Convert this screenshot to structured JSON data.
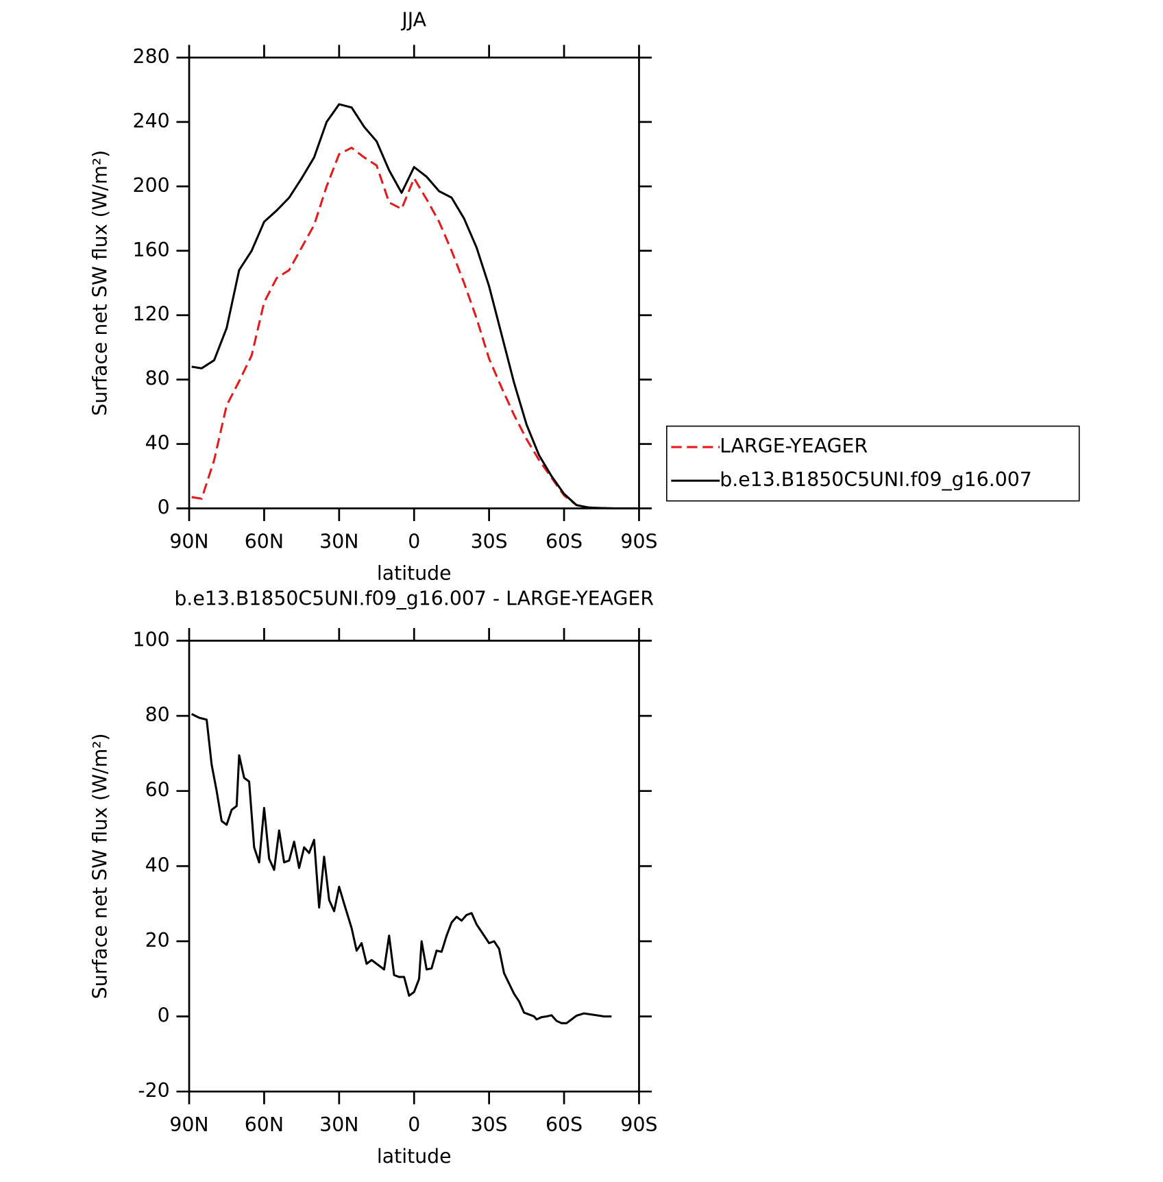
{
  "chart_data": [
    {
      "type": "line",
      "title": "JJA",
      "x_label": "latitude",
      "y_label": "Surface net SW flux (W/m²)",
      "x": [
        89,
        85,
        80,
        75,
        70,
        65,
        60,
        55,
        50,
        45,
        40,
        35,
        30,
        25,
        20,
        15,
        10,
        5,
        0,
        -5,
        -10,
        -15,
        -20,
        -25,
        -30,
        -35,
        -40,
        -45,
        -50,
        -55,
        -60,
        -65,
        -70,
        -75,
        -80,
        -85,
        -89
      ],
      "series": [
        {
          "name": "LARGE-YEAGER",
          "color": "#e41a1c",
          "dash": true,
          "values": [
            7,
            6,
            30,
            64,
            79,
            95,
            128,
            143,
            148,
            162,
            176,
            200,
            220,
            224,
            218,
            213,
            190,
            186,
            205,
            192,
            178,
            160,
            140,
            118,
            93,
            75,
            58,
            43,
            30,
            19,
            8,
            2,
            0.5,
            0.2,
            0,
            0,
            0
          ]
        },
        {
          "name": "b.e13.B1850C5UNI.f09_g16.007",
          "color": "#000000",
          "dash": false,
          "values": [
            88,
            87,
            92,
            112,
            148,
            160,
            178,
            185,
            193,
            205,
            218,
            240,
            251,
            249,
            237,
            228,
            210,
            196,
            212,
            206,
            197,
            193,
            180,
            162,
            138,
            108,
            78,
            52,
            33,
            20,
            9,
            2,
            0.5,
            0.2,
            0,
            0,
            0
          ]
        }
      ],
      "xlim": [
        90,
        -90
      ],
      "xticks": [
        {
          "value": 90,
          "label": "90N"
        },
        {
          "value": 60,
          "label": "60N"
        },
        {
          "value": 30,
          "label": "30N"
        },
        0,
        {
          "value": -30,
          "label": "30S"
        },
        {
          "value": -60,
          "label": "60S"
        },
        {
          "value": -90,
          "label": "90S"
        }
      ],
      "ylim": [
        0,
        280
      ],
      "yticks": [
        0,
        40,
        80,
        120,
        160,
        200,
        240,
        280
      ],
      "legend": "right"
    },
    {
      "type": "line",
      "title": "b.e13.B1850C5UNI.f09_g16.007 - LARGE-YEAGER",
      "x_label": "latitude",
      "y_label": "Surface net SW flux (W/m²)",
      "x": [
        89,
        86,
        83,
        81,
        79,
        77,
        75,
        73,
        71,
        70,
        68,
        66,
        64,
        62,
        60,
        58,
        56,
        54,
        52,
        50,
        48,
        46,
        44,
        42,
        40,
        38,
        36,
        34,
        32,
        30,
        28,
        25,
        23,
        21,
        19,
        17,
        14,
        12,
        10,
        8,
        6,
        4,
        2,
        0,
        -2,
        -3,
        -5,
        -7,
        -9,
        -11,
        -13,
        -15,
        -17,
        -19,
        -21,
        -23,
        -25,
        -28,
        -30,
        -32,
        -34,
        -36,
        -40,
        -42,
        -44,
        -48,
        -49,
        -51,
        -53,
        -55,
        -57,
        -59,
        -61,
        -63,
        -65,
        -68,
        -72,
        -76,
        -79
      ],
      "values": [
        80.5,
        79.5,
        79,
        67,
        60,
        52,
        51,
        55,
        56,
        69.5,
        63.5,
        62.5,
        45,
        41,
        55.5,
        42,
        39,
        49.5,
        41,
        41.5,
        46.5,
        39.5,
        45,
        43.5,
        47,
        29,
        42.5,
        31,
        28,
        34.5,
        30,
        23.5,
        17.5,
        19.5,
        14,
        15,
        13.5,
        12.5,
        21.5,
        11,
        10.5,
        10.5,
        5.5,
        6.5,
        10,
        20,
        12.5,
        12.8,
        17.5,
        17.2,
        21.5,
        25,
        26.5,
        25.5,
        27,
        27.5,
        24.5,
        21.5,
        19.5,
        20,
        18,
        11.5,
        6,
        4,
        1,
        0,
        -0.8,
        -0.2,
        0,
        0.3,
        -1.2,
        -1.8,
        -1.8,
        -0.8,
        0.2,
        0.8,
        0.4,
        0,
        0
      ],
      "color": "#000000",
      "xlim": [
        90,
        -90
      ],
      "xticks": [
        {
          "value": 90,
          "label": "90N"
        },
        {
          "value": 60,
          "label": "60N"
        },
        {
          "value": 30,
          "label": "30N"
        },
        0,
        {
          "value": -30,
          "label": "30S"
        },
        {
          "value": -60,
          "label": "60S"
        },
        {
          "value": -90,
          "label": "90S"
        }
      ],
      "ylim": [
        -20,
        100
      ],
      "yticks": [
        -20,
        0,
        20,
        40,
        60,
        80,
        100
      ]
    }
  ]
}
